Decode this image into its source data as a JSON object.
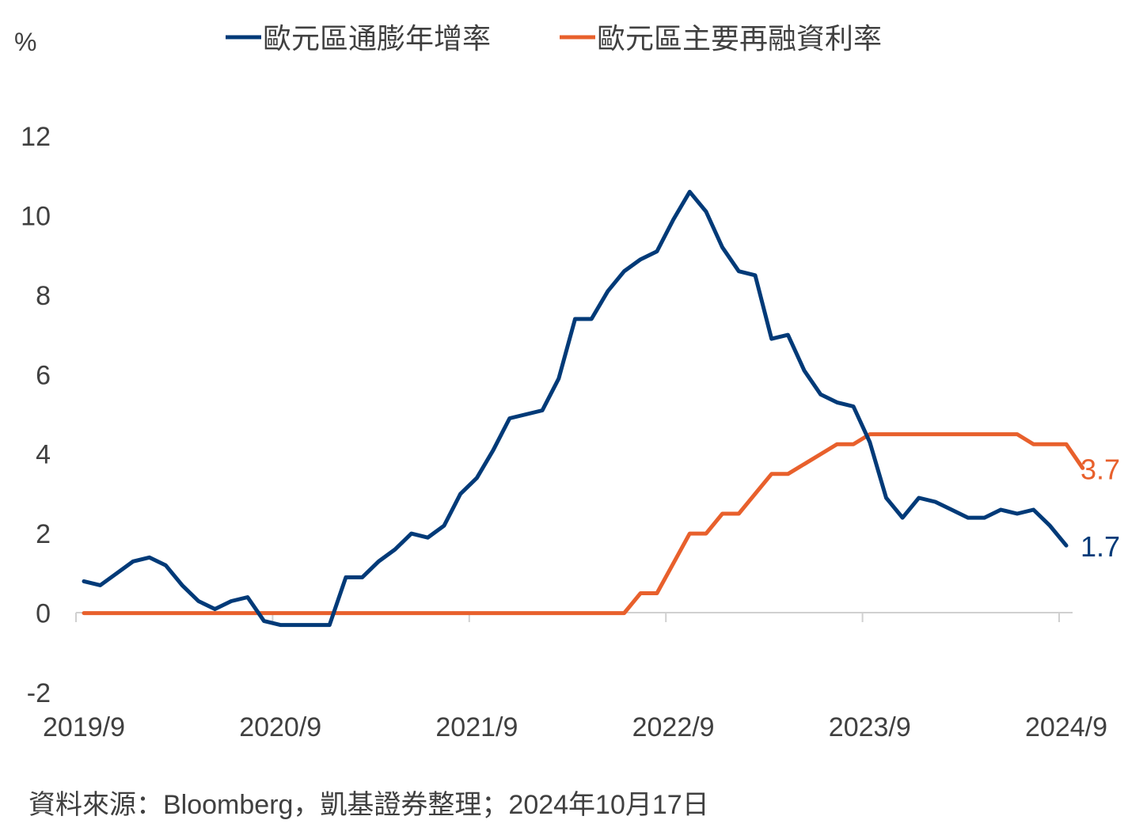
{
  "chart_data": {
    "type": "line",
    "ylabel": "%",
    "ylim": [
      -2,
      12
    ],
    "yticks": [
      -2,
      0,
      2,
      4,
      6,
      8,
      10,
      12
    ],
    "xticks": [
      "2019/9",
      "2020/9",
      "2021/9",
      "2022/9",
      "2023/9",
      "2024/9"
    ],
    "legend_position": "top",
    "grid": false,
    "series": [
      {
        "name": "歐元區通膨年增率",
        "color": "#003a78",
        "end_label": "1.7",
        "values": [
          0.8,
          0.7,
          1.0,
          1.3,
          1.4,
          1.2,
          0.7,
          0.3,
          0.1,
          0.3,
          0.4,
          -0.2,
          -0.3,
          -0.3,
          -0.3,
          -0.3,
          0.9,
          0.9,
          1.3,
          1.6,
          2.0,
          1.9,
          2.2,
          3.0,
          3.4,
          4.1,
          4.9,
          5.0,
          5.1,
          5.9,
          7.4,
          7.4,
          8.1,
          8.6,
          8.9,
          9.1,
          9.9,
          10.6,
          10.1,
          9.2,
          8.6,
          8.5,
          6.9,
          7.0,
          6.1,
          5.5,
          5.3,
          5.2,
          4.3,
          2.9,
          2.4,
          2.9,
          2.8,
          2.6,
          2.4,
          2.4,
          2.6,
          2.5,
          2.6,
          2.2,
          1.7
        ]
      },
      {
        "name": "歐元區主要再融資利率",
        "color": "#e8602c",
        "end_label": "3.7",
        "values": [
          0,
          0,
          0,
          0,
          0,
          0,
          0,
          0,
          0,
          0,
          0,
          0,
          0,
          0,
          0,
          0,
          0,
          0,
          0,
          0,
          0,
          0,
          0,
          0,
          0,
          0,
          0,
          0,
          0,
          0,
          0,
          0,
          0,
          0,
          0.5,
          0.5,
          1.25,
          2.0,
          2.0,
          2.5,
          2.5,
          3.0,
          3.5,
          3.5,
          3.75,
          4.0,
          4.25,
          4.25,
          4.5,
          4.5,
          4.5,
          4.5,
          4.5,
          4.5,
          4.5,
          4.5,
          4.5,
          4.5,
          4.25,
          4.25,
          4.25,
          3.65
        ]
      }
    ]
  },
  "source_note": "資料來源：Bloomberg，凱基證券整理；2024年10月17日"
}
